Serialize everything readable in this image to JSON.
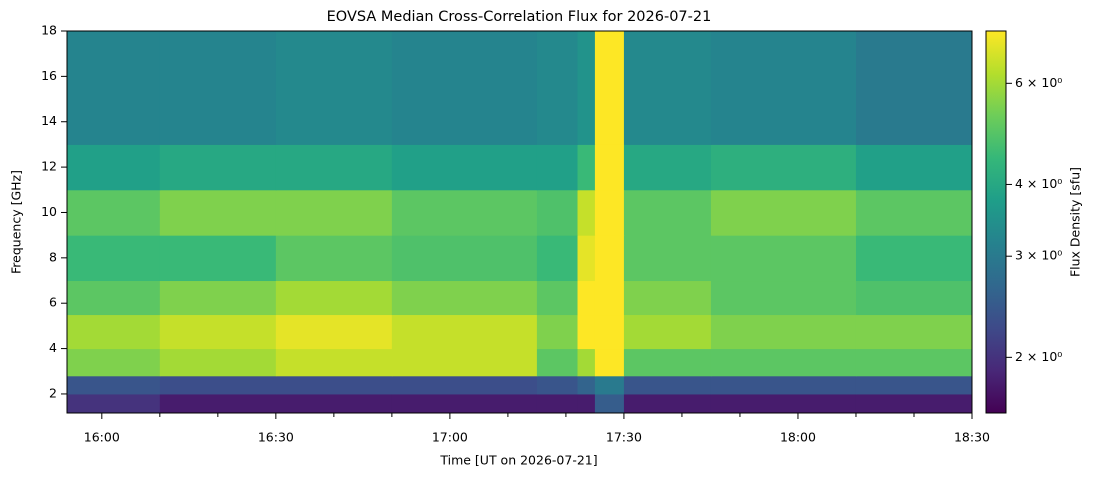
{
  "chart_data": {
    "type": "heatmap",
    "title": "EOVSA Median Cross-Correlation Flux for 2026-07-21",
    "xlabel": "Time [UT on 2026-07-21]",
    "ylabel": "Frequency [GHz]",
    "colorbar_label": "Flux Density [sfu]",
    "xlim": [
      "15:54",
      "18:30"
    ],
    "xticks": [
      "16:00",
      "16:30",
      "17:00",
      "17:30",
      "18:00",
      "18:30"
    ],
    "xminorticks": [
      "16:10",
      "16:20",
      "16:40",
      "16:50",
      "17:10",
      "17:20",
      "17:40",
      "17:50",
      "18:10",
      "18:20"
    ],
    "ylim": [
      1.16,
      18
    ],
    "yticks": [
      2,
      4,
      6,
      8,
      10,
      12,
      14,
      16,
      18
    ],
    "x_edges": [
      "15:54",
      "16:10",
      "16:30",
      "16:50",
      "17:15",
      "17:22",
      "17:25",
      "17:30",
      "17:45",
      "18:10",
      "18:30"
    ],
    "y_edges": [
      1.16,
      2,
      2.8,
      4,
      5.5,
      7,
      9,
      11,
      13,
      18
    ],
    "z": [
      [
        2.0,
        1.8,
        1.8,
        1.8,
        1.8,
        1.8,
        2.5,
        1.8,
        1.8,
        1.8
      ],
      [
        2.4,
        2.3,
        2.3,
        2.3,
        2.4,
        2.6,
        3.0,
        2.4,
        2.4,
        2.4
      ],
      [
        5.5,
        6,
        6.5,
        6.5,
        5,
        6,
        7.4,
        5,
        5,
        5
      ],
      [
        6,
        6.5,
        7,
        6.5,
        5.5,
        7.4,
        7.4,
        6,
        5.5,
        5.5
      ],
      [
        5,
        5.5,
        6,
        5.5,
        5,
        7.4,
        7.4,
        5.5,
        5,
        4.8
      ],
      [
        4.5,
        4.5,
        5,
        4.8,
        4.5,
        7,
        7.4,
        5,
        5,
        4.5
      ],
      [
        5,
        5.5,
        5.5,
        5,
        4.8,
        6.5,
        7.4,
        5,
        5.5,
        5
      ],
      [
        3.8,
        4,
        4,
        3.8,
        3.8,
        4.5,
        7.4,
        4,
        4.2,
        3.8
      ],
      [
        3.2,
        3.2,
        3.3,
        3.2,
        3.3,
        3.5,
        7.4,
        3.3,
        3.2,
        3.0
      ]
    ],
    "colormap": "viridis",
    "color_scale": "log",
    "clim": [
      1.6,
      7.4
    ],
    "cticks": [
      {
        "value": 2,
        "label": "2 × 10⁰"
      },
      {
        "value": 3,
        "label": "3 × 10⁰"
      },
      {
        "value": 4,
        "label": "4 × 10⁰"
      },
      {
        "value": 6,
        "label": "6 × 10⁰"
      }
    ]
  }
}
